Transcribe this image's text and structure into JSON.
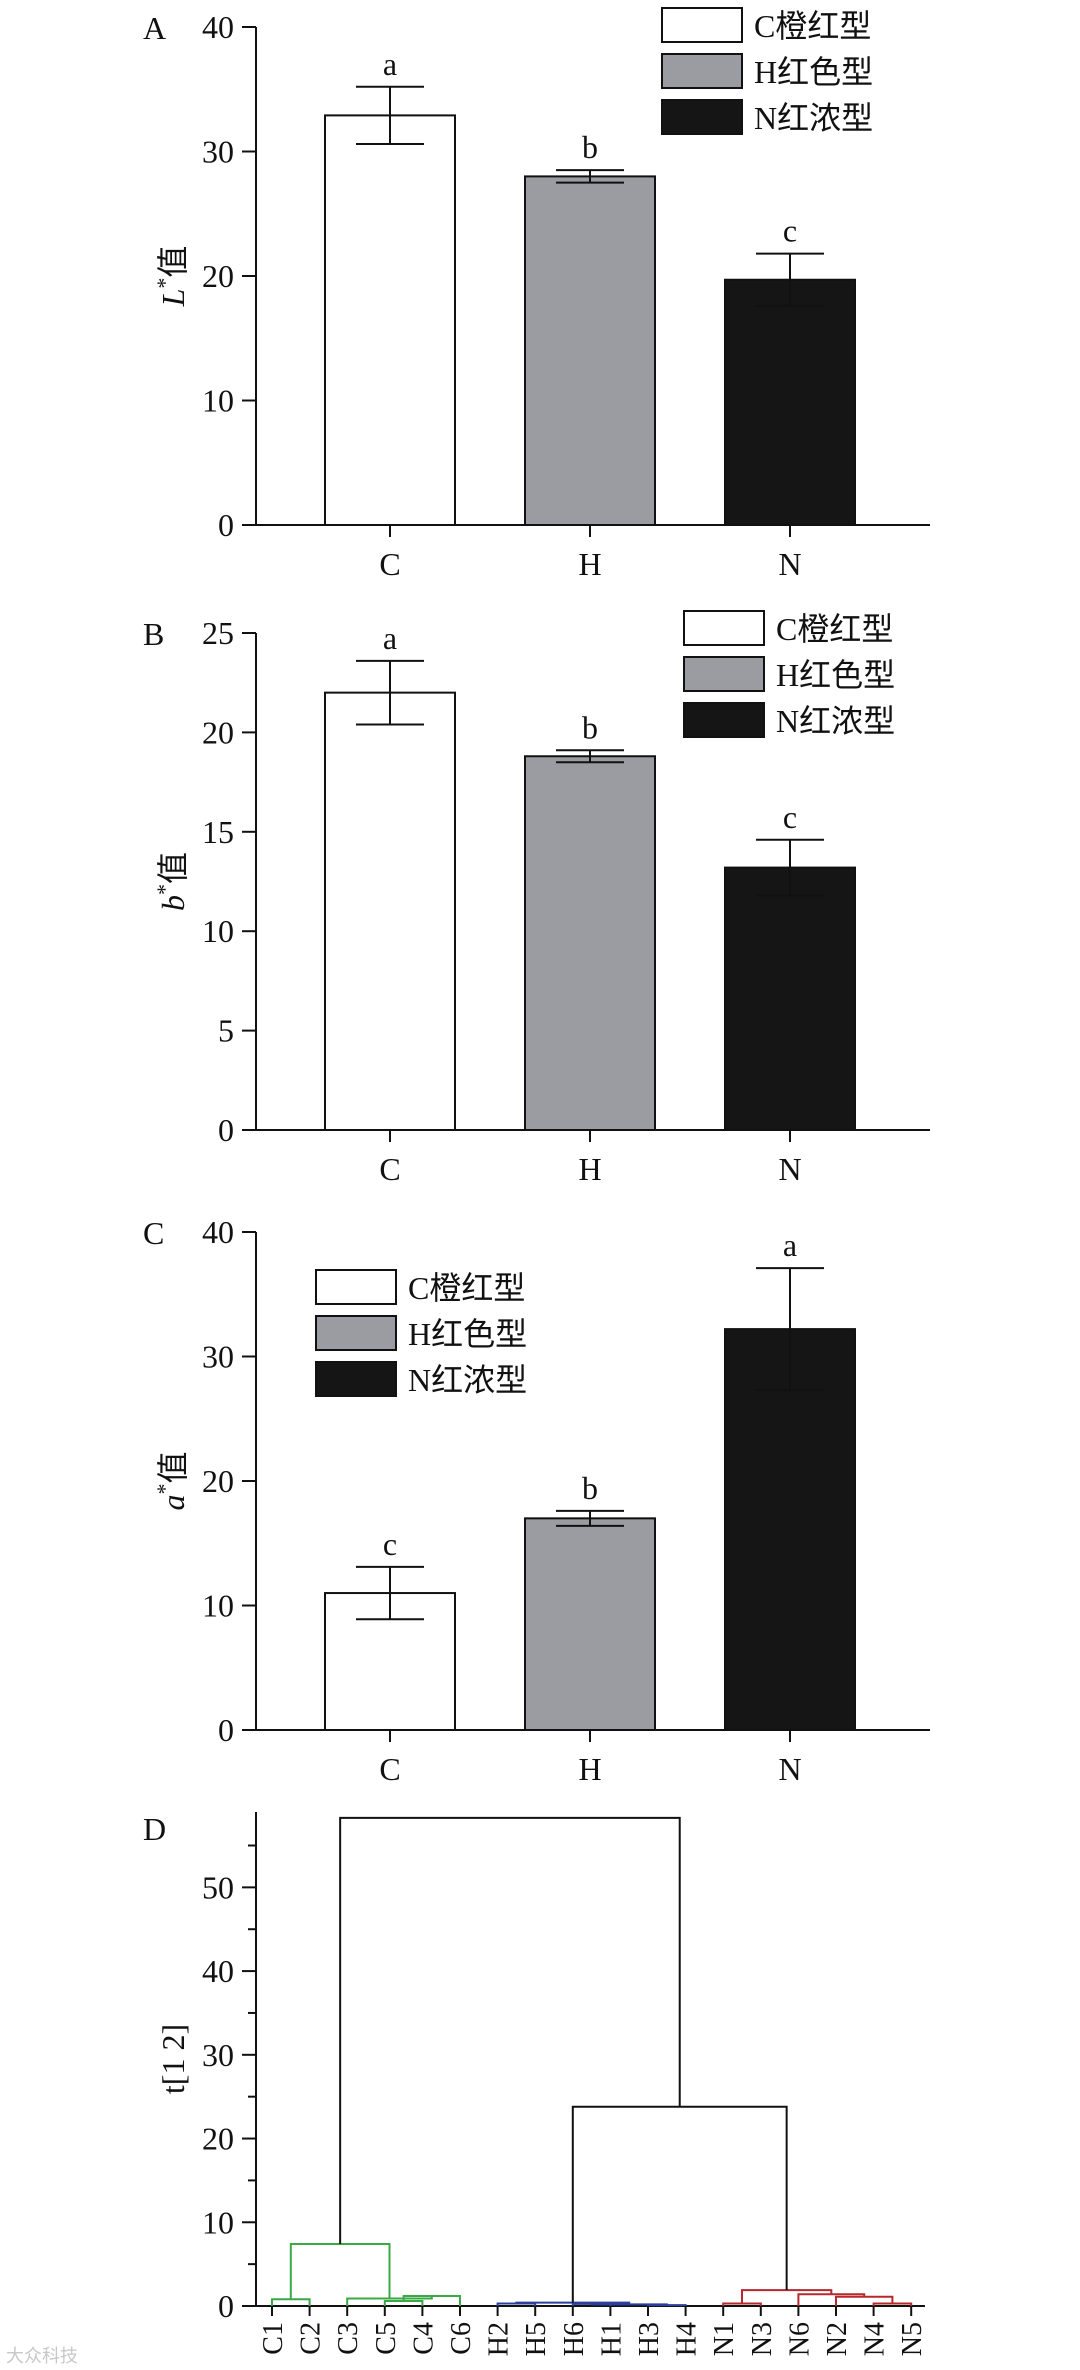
{
  "chart_data": [
    {
      "panel": "A",
      "type": "bar",
      "categories": [
        "C",
        "H",
        "N"
      ],
      "series": [
        {
          "name": "C橙红型",
          "color": "#ffffff"
        },
        {
          "name": "H红色型",
          "color": "#9a9ca1"
        },
        {
          "name": "N红浓型",
          "color": "#151515"
        }
      ],
      "values": [
        32.9,
        28.0,
        19.7
      ],
      "errors": [
        2.3,
        0.5,
        2.1
      ],
      "significance": [
        "a",
        "b",
        "c"
      ],
      "ylabel_italic": "L",
      "ylabel_sup": "*",
      "ylabel_rest": "值",
      "ylim": [
        0,
        40
      ],
      "yticks": [
        0,
        10,
        20,
        30,
        40
      ],
      "legend_position": "top-right"
    },
    {
      "panel": "B",
      "type": "bar",
      "categories": [
        "C",
        "H",
        "N"
      ],
      "series": [
        {
          "name": "C橙红型",
          "color": "#ffffff"
        },
        {
          "name": "H红色型",
          "color": "#9a9ca1"
        },
        {
          "name": "N红浓型",
          "color": "#151515"
        }
      ],
      "values": [
        22.0,
        18.8,
        13.2
      ],
      "errors": [
        1.6,
        0.3,
        1.4
      ],
      "significance": [
        "a",
        "b",
        "c"
      ],
      "ylabel_italic": "b",
      "ylabel_sup": "*",
      "ylabel_rest": "值",
      "ylim": [
        0,
        25
      ],
      "yticks": [
        0,
        5,
        10,
        15,
        20,
        25
      ],
      "legend_position": "top-right"
    },
    {
      "panel": "C",
      "type": "bar",
      "categories": [
        "C",
        "H",
        "N"
      ],
      "series": [
        {
          "name": "C橙红型",
          "color": "#ffffff"
        },
        {
          "name": "H红色型",
          "color": "#9a9ca1"
        },
        {
          "name": "N红浓型",
          "color": "#151515"
        }
      ],
      "values": [
        11.0,
        17.0,
        32.2
      ],
      "errors": [
        2.1,
        0.6,
        4.9
      ],
      "significance": [
        "c",
        "b",
        "a"
      ],
      "ylabel_italic": "a",
      "ylabel_sup": "*",
      "ylabel_rest": "值",
      "ylim": [
        0,
        40
      ],
      "yticks": [
        0,
        10,
        20,
        30,
        40
      ],
      "legend_position": "top-left"
    },
    {
      "panel": "D",
      "type": "dendrogram",
      "ylabel": "t[1 2]",
      "ylim": [
        0,
        59
      ],
      "yticks": [
        0,
        10,
        20,
        30,
        40,
        50
      ],
      "leaves": [
        "C1",
        "C2",
        "C3",
        "C5",
        "C4",
        "C6",
        "H2",
        "H5",
        "H6",
        "H1",
        "H3",
        "H4",
        "N1",
        "N3",
        "N6",
        "N2",
        "N4",
        "N5"
      ],
      "cluster_colors": {
        "C": "#3aa845",
        "H": "#2b3f9e",
        "N": "#b5282e",
        "root": "#111111"
      },
      "merges": [
        {
          "a": "C1",
          "b": "C2",
          "height": 0.8,
          "color": "C"
        },
        {
          "a": "C5",
          "b": "C4",
          "height": 0.6,
          "color": "C"
        },
        {
          "a": "C5+C4",
          "b": "C6",
          "height": 1.2,
          "color": "C"
        },
        {
          "a": "C3",
          "b": "C5+C4+C6",
          "height": 0.9,
          "color": "C"
        },
        {
          "a": "C1+C2",
          "b": "C3+C5+C4+C6",
          "height": 7.4,
          "color": "C"
        },
        {
          "a": "H2",
          "b": "H5",
          "height": 0.3,
          "color": "H"
        },
        {
          "a": "H6",
          "b": "H1",
          "height": 0.25,
          "color": "H"
        },
        {
          "a": "H3",
          "b": "H4",
          "height": 0.1,
          "color": "H"
        },
        {
          "a": "H6+H1",
          "b": "H3+H4",
          "height": 0.2,
          "color": "H"
        },
        {
          "a": "H2+H5",
          "b": "H6+H1+H3+H4",
          "height": 0.4,
          "color": "H"
        },
        {
          "a": "N1",
          "b": "N3",
          "height": 0.3,
          "color": "N"
        },
        {
          "a": "N4",
          "b": "N5",
          "height": 0.3,
          "color": "N"
        },
        {
          "a": "N2",
          "b": "N4+N5",
          "height": 1.1,
          "color": "N"
        },
        {
          "a": "N6",
          "b": "N2+N4+N5",
          "height": 1.4,
          "color": "N"
        },
        {
          "a": "N1+N3",
          "b": "N6+N2+N4+N5",
          "height": 1.9,
          "color": "N"
        },
        {
          "a": "H",
          "b": "N",
          "height": 23.8,
          "color": "root"
        },
        {
          "a": "C",
          "b": "H+N",
          "height": 58.3,
          "color": "root"
        }
      ]
    }
  ],
  "watermark": "大众科技"
}
